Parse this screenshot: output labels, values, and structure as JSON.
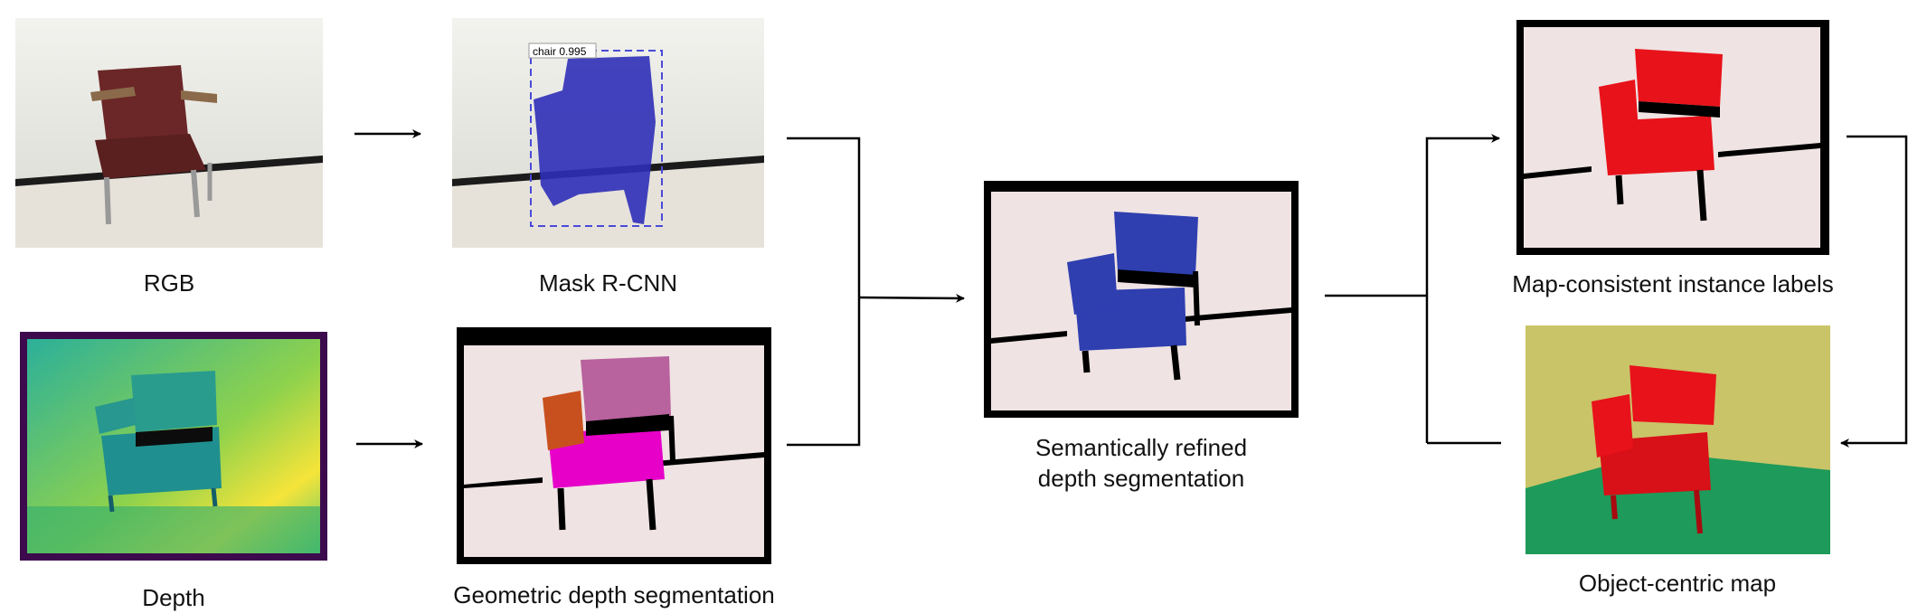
{
  "panels": {
    "rgb": {
      "label": "RGB"
    },
    "mask_rcnn": {
      "label": "Mask R-CNN",
      "detection_tag": "chair 0.995"
    },
    "depth": {
      "label": "Depth"
    },
    "geometric": {
      "label": "Geometric depth segmentation"
    },
    "refined": {
      "label_line1": "Semantically refined",
      "label_line2": "depth segmentation"
    },
    "instance": {
      "label": "Map-consistent instance labels"
    },
    "map": {
      "label": "Object-centric map"
    }
  },
  "colors": {
    "background_seg": "#efe3e3",
    "chair_mask_blue": "#2f2fb8",
    "refined_blue": "#2f3fb0",
    "instance_red": "#e8121a",
    "segment_pink": "#b8629e",
    "segment_magenta": "#e600c8",
    "segment_orange": "#c8501e",
    "map_wall": "#c9c468",
    "map_floor": "#1e9a5a",
    "depth_frame": "#3d0a4e"
  }
}
